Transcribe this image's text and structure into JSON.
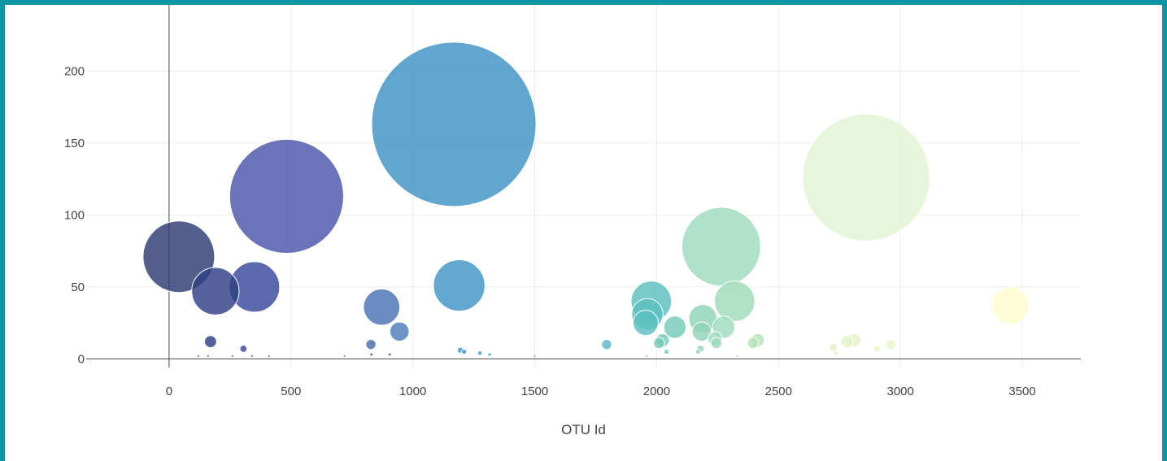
{
  "chart_data": {
    "type": "scatter",
    "subtype": "bubble",
    "title": "",
    "xlabel": "OTU Id",
    "ylabel": "",
    "xlim": [
      -340,
      3740
    ],
    "ylim": [
      -6,
      246
    ],
    "x_ticks": [
      0,
      500,
      1000,
      1500,
      2000,
      2500,
      3000,
      3500
    ],
    "y_ticks": [
      0,
      50,
      100,
      150,
      200
    ],
    "grid": true,
    "colorscale": "YlGnBu reversed",
    "points": [
      {
        "x": 40,
        "y": 71,
        "size": 71,
        "color": "#2d3b72"
      },
      {
        "x": 190,
        "y": 47,
        "size": 47,
        "color": "#2f3f85"
      },
      {
        "x": 350,
        "y": 50,
        "size": 50,
        "color": "#38489a"
      },
      {
        "x": 482,
        "y": 113,
        "size": 113,
        "color": "#4b56aa"
      },
      {
        "x": 170,
        "y": 12,
        "size": 12,
        "color": "#2f3f85"
      },
      {
        "x": 305,
        "y": 7,
        "size": 7,
        "color": "#38489a"
      },
      {
        "x": 872,
        "y": 36,
        "size": 36,
        "color": "#4a73b4"
      },
      {
        "x": 945,
        "y": 19,
        "size": 19,
        "color": "#4a7cbb"
      },
      {
        "x": 828,
        "y": 10,
        "size": 10,
        "color": "#4a6db0"
      },
      {
        "x": 1168,
        "y": 163,
        "size": 163,
        "color": "#3d92c5"
      },
      {
        "x": 1190,
        "y": 51,
        "size": 51,
        "color": "#3f95c6"
      },
      {
        "x": 1195,
        "y": 6,
        "size": 6,
        "color": "#3f95c6"
      },
      {
        "x": 1275,
        "y": 4,
        "size": 4,
        "color": "#3f95c6"
      },
      {
        "x": 1795,
        "y": 10,
        "size": 10,
        "color": "#5ab8c6"
      },
      {
        "x": 1978,
        "y": 40,
        "size": 40,
        "color": "#5cc0c0"
      },
      {
        "x": 1962,
        "y": 31,
        "size": 31,
        "color": "#5cc0c0"
      },
      {
        "x": 1955,
        "y": 25,
        "size": 25,
        "color": "#5cc0c0"
      },
      {
        "x": 2075,
        "y": 22,
        "size": 22,
        "color": "#74cab9"
      },
      {
        "x": 2025,
        "y": 13,
        "size": 13,
        "color": "#74cab9"
      },
      {
        "x": 2010,
        "y": 11,
        "size": 11,
        "color": "#74cab9"
      },
      {
        "x": 2265,
        "y": 78,
        "size": 78,
        "color": "#9fdabd"
      },
      {
        "x": 2320,
        "y": 40,
        "size": 40,
        "color": "#a0dab8"
      },
      {
        "x": 2190,
        "y": 28,
        "size": 28,
        "color": "#90d3b8"
      },
      {
        "x": 2185,
        "y": 19,
        "size": 19,
        "color": "#90d3b8"
      },
      {
        "x": 2275,
        "y": 22,
        "size": 22,
        "color": "#9fdabd"
      },
      {
        "x": 2240,
        "y": 14,
        "size": 14,
        "color": "#9fdabd"
      },
      {
        "x": 2245,
        "y": 11,
        "size": 11,
        "color": "#9fdabd"
      },
      {
        "x": 2415,
        "y": 13,
        "size": 13,
        "color": "#b5e2b6"
      },
      {
        "x": 2395,
        "y": 11,
        "size": 11,
        "color": "#b5e2b6"
      },
      {
        "x": 2860,
        "y": 126,
        "size": 126,
        "color": "#e1f4d3"
      },
      {
        "x": 2810,
        "y": 13,
        "size": 13,
        "color": "#e0f3c6"
      },
      {
        "x": 2780,
        "y": 12,
        "size": 12,
        "color": "#e0f3c6"
      },
      {
        "x": 2725,
        "y": 8,
        "size": 8,
        "color": "#e0f3c6"
      },
      {
        "x": 2960,
        "y": 10,
        "size": 10,
        "color": "#e8f6cc"
      },
      {
        "x": 2905,
        "y": 7,
        "size": 7,
        "color": "#e8f6cc"
      },
      {
        "x": 3450,
        "y": 37,
        "size": 37,
        "color": "#fdfdcf"
      },
      {
        "x": 2180,
        "y": 7,
        "size": 7,
        "color": "#90d3b8"
      },
      {
        "x": 2170,
        "y": 5,
        "size": 5,
        "color": "#90d3b8"
      },
      {
        "x": 2040,
        "y": 5,
        "size": 5,
        "color": "#74cab9"
      },
      {
        "x": 1210,
        "y": 5,
        "size": 5,
        "color": "#3f95c6"
      },
      {
        "x": 1315,
        "y": 3,
        "size": 3,
        "color": "#3f95c6"
      },
      {
        "x": 830,
        "y": 3,
        "size": 3,
        "color": "#4a6db0"
      },
      {
        "x": 905,
        "y": 3,
        "size": 3,
        "color": "#4a73b4"
      },
      {
        "x": 2735,
        "y": 4,
        "size": 4,
        "color": "#e0f3c6"
      },
      {
        "x": 120,
        "y": 2,
        "size": 2,
        "color": "#2f3f85"
      },
      {
        "x": 160,
        "y": 2,
        "size": 2,
        "color": "#2f3f85"
      },
      {
        "x": 260,
        "y": 2,
        "size": 2,
        "color": "#38489a"
      },
      {
        "x": 340,
        "y": 2,
        "size": 2,
        "color": "#38489a"
      },
      {
        "x": 410,
        "y": 2,
        "size": 2,
        "color": "#38489a"
      },
      {
        "x": 720,
        "y": 2,
        "size": 2,
        "color": "#4a6db0"
      },
      {
        "x": 1500,
        "y": 2,
        "size": 2,
        "color": "#3f95c6"
      },
      {
        "x": 1960,
        "y": 2,
        "size": 2,
        "color": "#5cc0c0"
      },
      {
        "x": 2330,
        "y": 2,
        "size": 2,
        "color": "#a0dab8"
      }
    ]
  }
}
